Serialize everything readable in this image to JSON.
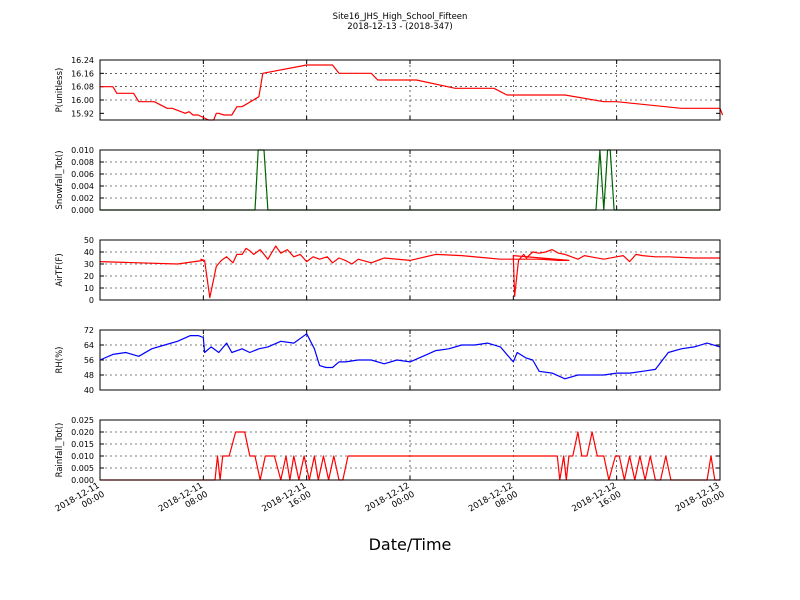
{
  "chart_data": {
    "title": "Site16_JHS_High_School_Fifteen",
    "subtitle": "2018-12-13 - (2018-347)",
    "xlabel": "Date/Time",
    "x_ticks": [
      "2018-12-11\n00:00",
      "2018-12-11\n08:00",
      "2018-12-11\n16:00",
      "2018-12-12\n00:00",
      "2018-12-12\n08:00",
      "2018-12-12\n16:00",
      "2018-12-13\n00:00"
    ],
    "grid": true,
    "panels": [
      {
        "type": "line",
        "ylabel": "P(unitless)",
        "color": "#ff0000",
        "ylim": [
          15.88,
          16.24
        ],
        "yticks": [
          "15.92",
          "16.00",
          "16.08",
          "16.16",
          "16.24"
        ],
        "x": [
          0,
          1,
          1.3,
          2.6,
          3,
          4.2,
          5.2,
          5.6,
          6.6,
          6.9,
          7.2,
          7.6,
          8.4,
          8.8,
          9.0,
          9.2,
          9.6,
          10.2,
          10.6,
          11.0,
          12.3,
          12.6,
          16.0,
          18.0,
          18.5,
          21.0,
          21.5,
          24.5,
          27.5,
          30.5,
          31.5,
          36.0,
          39.0,
          40.0,
          45.0,
          48.0,
          48.2
        ],
        "y": [
          16.08,
          16.08,
          16.04,
          16.04,
          15.99,
          15.99,
          15.95,
          15.95,
          15.92,
          15.93,
          15.91,
          15.91,
          15.88,
          15.88,
          15.92,
          15.92,
          15.91,
          15.91,
          15.96,
          15.96,
          16.02,
          16.16,
          16.21,
          16.21,
          16.16,
          16.16,
          16.12,
          16.12,
          16.07,
          16.07,
          16.03,
          16.03,
          15.99,
          15.99,
          15.95,
          15.95,
          15.91
        ]
      },
      {
        "type": "line",
        "ylabel": "Snowfall_Tot()",
        "color": "#006400",
        "ylim": [
          0,
          0.01
        ],
        "yticks": [
          "0.000",
          "0.002",
          "0.004",
          "0.006",
          "0.008",
          "0.010"
        ],
        "x": [
          0,
          12.0,
          12.25,
          12.4,
          12.7,
          13.0,
          38.4,
          38.7,
          39.0,
          39.3,
          39.5,
          39.8,
          40.0,
          48
        ],
        "y": [
          0,
          0,
          0.01,
          0.01,
          0.01,
          0,
          0,
          0.01,
          0,
          0.01,
          0.01,
          0,
          0,
          0
        ]
      },
      {
        "type": "line",
        "ylabel": "AirTF(F)",
        "color": "#ff0000",
        "ylim": [
          0,
          50
        ],
        "yticks": [
          "0",
          "10",
          "20",
          "30",
          "40",
          "50"
        ],
        "x": [
          0,
          3,
          6,
          8,
          7.8,
          8.1,
          8.5,
          9.0,
          9.4,
          9.8,
          10.3,
          10.6,
          11.0,
          11.3,
          11.6,
          11.9,
          12.4,
          13,
          13.6,
          14,
          14.5,
          15.0,
          15.5,
          16,
          16.5,
          17,
          17.6,
          18,
          18.5,
          19,
          19.5,
          20,
          21,
          22,
          24,
          26,
          28,
          30,
          31,
          32.5,
          34,
          35.5,
          36.3,
          32,
          32.1,
          32.4,
          32.8,
          33.0,
          33.5,
          34,
          34.5,
          35.0,
          35.5,
          36,
          36.5,
          37,
          37.5,
          38,
          39,
          40,
          40.5,
          41,
          41.5,
          42,
          43,
          44,
          46,
          48
        ],
        "y": [
          32,
          31,
          30,
          33,
          34,
          33,
          2,
          28,
          33,
          36,
          31,
          38,
          38,
          43,
          41,
          38,
          42,
          34,
          45,
          39,
          42,
          36,
          38,
          32,
          36,
          34,
          36,
          31,
          35,
          33,
          30,
          34,
          31,
          35,
          33,
          38,
          37,
          35,
          34,
          34,
          34,
          33,
          33,
          37,
          3,
          33,
          38,
          35,
          40,
          39,
          40,
          42,
          39,
          38,
          36,
          34,
          37,
          36,
          34,
          36,
          37,
          32,
          38,
          37,
          36,
          36,
          35,
          35
        ]
      },
      {
        "type": "line",
        "ylabel": "RH(%)",
        "color": "#0000ff",
        "ylim": [
          40,
          72
        ],
        "yticks": [
          "40",
          "48",
          "56",
          "64",
          "72"
        ],
        "x": [
          0,
          1,
          2,
          3,
          4,
          5,
          6,
          7,
          7.6,
          8,
          8.1,
          8.6,
          9.2,
          9.8,
          10.2,
          11,
          11.6,
          12.3,
          13,
          14,
          15,
          16,
          16.6,
          17,
          17.5,
          18,
          18.5,
          19,
          20,
          21,
          22,
          23,
          24,
          25,
          26,
          27,
          28,
          29,
          30,
          31,
          32,
          32.3,
          33,
          33.5,
          34,
          35,
          36,
          37,
          38,
          38.5,
          39,
          40,
          41,
          42,
          43,
          44,
          45,
          46,
          47,
          48
        ],
        "y": [
          56,
          59,
          60,
          58,
          62,
          64,
          66,
          69,
          69,
          68,
          60,
          63,
          60,
          65,
          60,
          62,
          60,
          62,
          63,
          66,
          65,
          70,
          62,
          53,
          52,
          52,
          55,
          55,
          56,
          56,
          54,
          56,
          55,
          58,
          61,
          62,
          64,
          64,
          65,
          63,
          55,
          60,
          57,
          56,
          50,
          49,
          46,
          48,
          48,
          48,
          48,
          49,
          49,
          50,
          51,
          60,
          62,
          63,
          65,
          63
        ]
      },
      {
        "type": "line",
        "ylabel": "Rainfall_Tot()",
        "color": "#ff0000",
        "ylim": [
          0,
          0.025
        ],
        "yticks": [
          "0.000",
          "0.005",
          "0.010",
          "0.015",
          "0.020",
          "0.025"
        ],
        "x": [
          0,
          8.9,
          9.1,
          9.3,
          9.5,
          10.0,
          10.5,
          10.8,
          11.2,
          11.6,
          12.0,
          12.4,
          12.8,
          13.2,
          13.5,
          14.0,
          14.4,
          14.7,
          15.0,
          15.4,
          15.8,
          16.2,
          16.6,
          16.9,
          17.3,
          17.7,
          18.1,
          18.5,
          18.8,
          19.2,
          35.4,
          35.6,
          35.9,
          36.1,
          36.3,
          36.6,
          37.0,
          37.3,
          37.7,
          38.1,
          38.5,
          39.0,
          39.4,
          39.9,
          40.2,
          40.6,
          41.0,
          41.4,
          41.8,
          42.2,
          42.6,
          43.0,
          43.4,
          43.8,
          44.2,
          47.0,
          47.3,
          47.6,
          48.0
        ],
        "y": [
          0,
          0,
          0.01,
          0,
          0.01,
          0.01,
          0.02,
          0.02,
          0.02,
          0.01,
          0.01,
          0,
          0.01,
          0.01,
          0.01,
          0,
          0.01,
          0,
          0.01,
          0,
          0.01,
          0,
          0.01,
          0,
          0.01,
          0,
          0.01,
          0,
          0,
          0.01,
          0.01,
          0,
          0.01,
          0,
          0.01,
          0.01,
          0.02,
          0.01,
          0.01,
          0.02,
          0.01,
          0.01,
          0,
          0.01,
          0.01,
          0,
          0.01,
          0,
          0.01,
          0,
          0.01,
          0,
          0,
          0.01,
          0,
          0,
          0.01,
          0,
          0
        ]
      }
    ]
  }
}
